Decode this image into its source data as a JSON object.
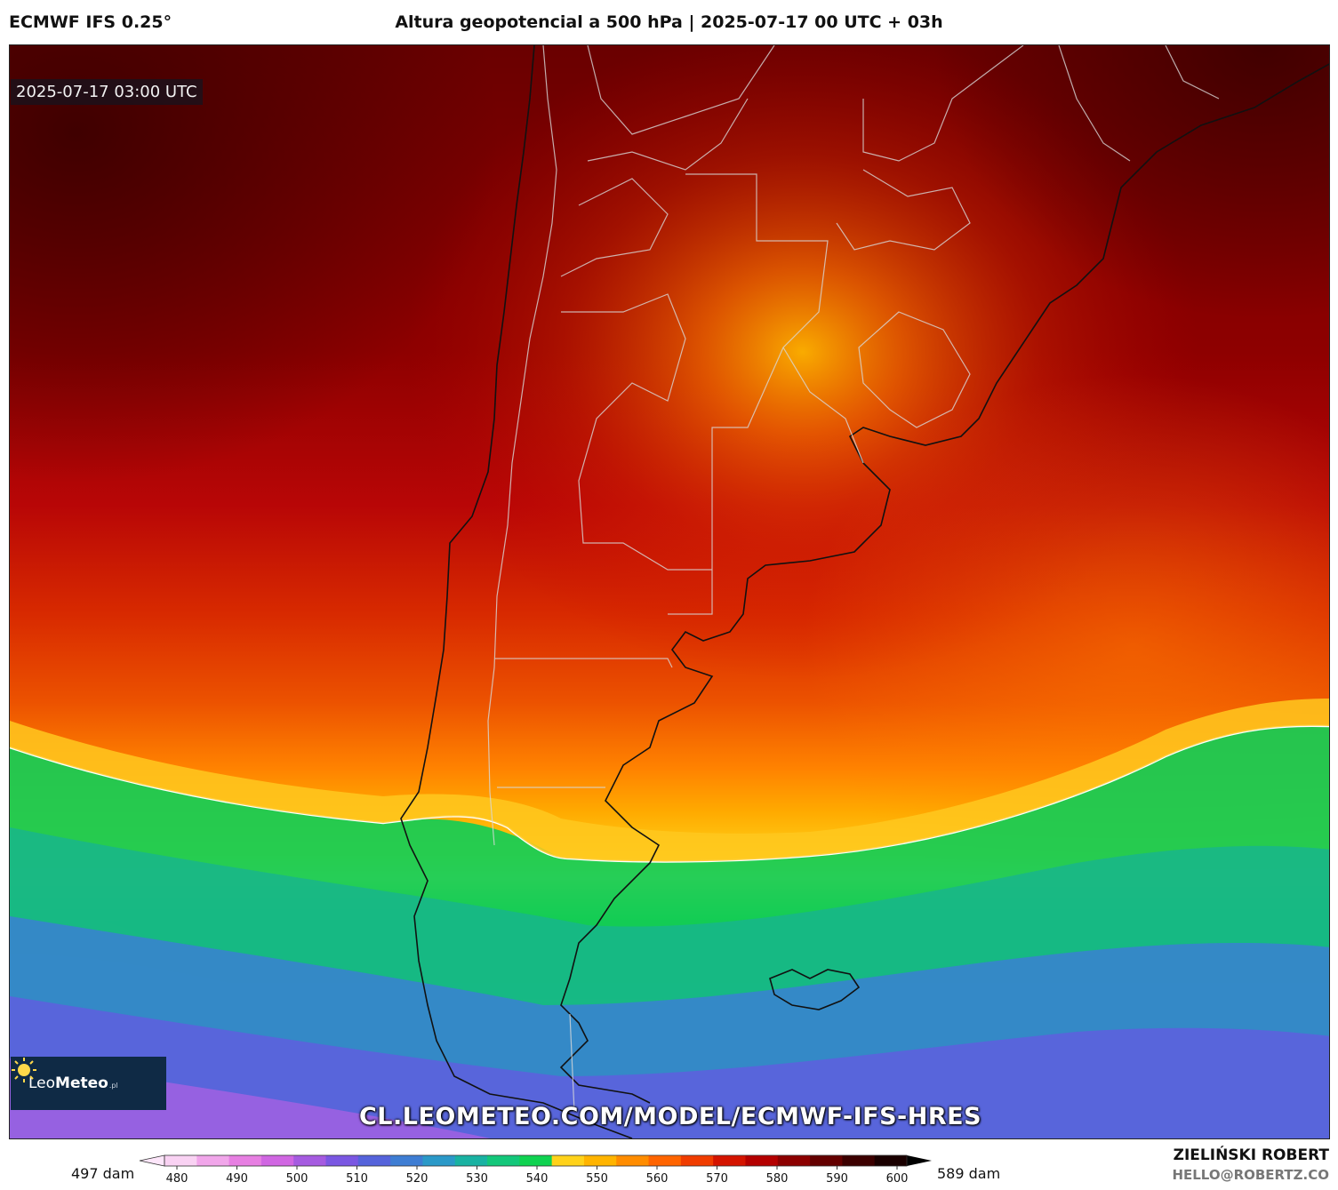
{
  "header": {
    "model": "ECMWF IFS 0.25°",
    "title": "Altura geopotencial a 500 hPa | 2025-07-17 00 UTC + 03h"
  },
  "map": {
    "timestamp": "2025-07-17 03:00 UTC",
    "watermark": "CL.LEOMETEO.COM/MODEL/ECMWF-IFS-HRES",
    "logo": {
      "name": "Leo",
      "name_bold": "Meteo",
      "suffix": ".pl",
      "icon": "sun-icon"
    }
  },
  "colorbar": {
    "min_label": "497 dam",
    "max_label": "589 dam",
    "ticks": [
      "480",
      "490",
      "500",
      "510",
      "520",
      "530",
      "540",
      "550",
      "560",
      "570",
      "580",
      "590",
      "600"
    ],
    "colors": [
      "#f9d2f3",
      "#f1a6ea",
      "#e77fe2",
      "#d066e2",
      "#a55be0",
      "#7a57e2",
      "#5563db",
      "#3e7dd3",
      "#2b99c8",
      "#19b2a2",
      "#13c77a",
      "#0fd250",
      "#ffd21a",
      "#ffb400",
      "#ff8c00",
      "#ff6400",
      "#f03c00",
      "#d41400",
      "#b40000",
      "#8c0000",
      "#640000",
      "#3c0000",
      "#1a0000"
    ]
  },
  "footer": {
    "author": "ZIELIŃSKI ROBERT",
    "email": "HELLO@ROBERTZ.CO"
  }
}
